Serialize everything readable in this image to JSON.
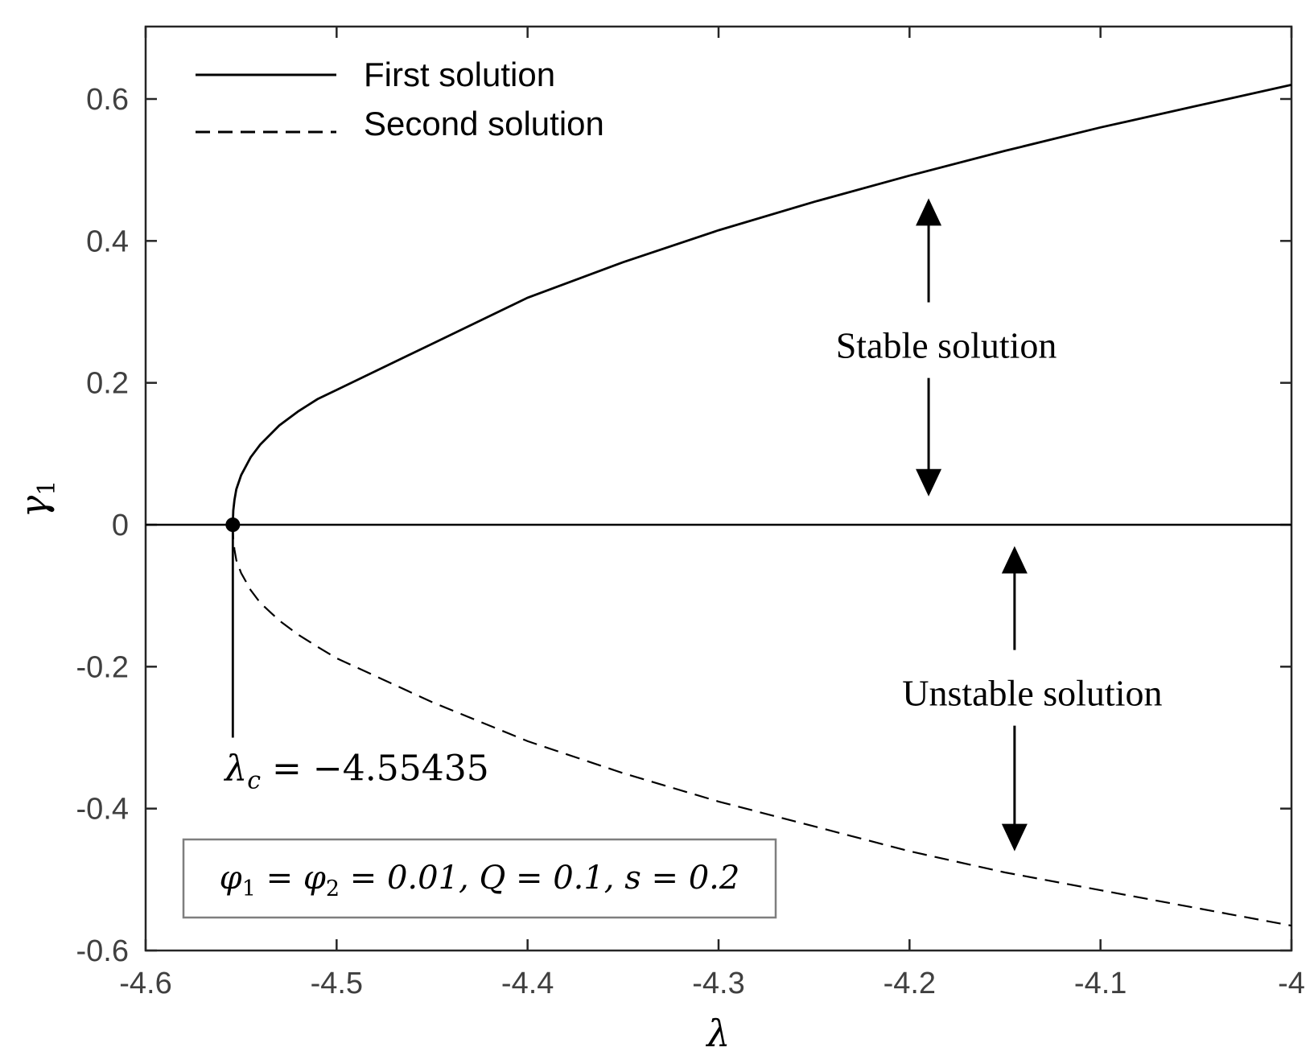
{
  "chart_data": {
    "type": "line",
    "title": "",
    "xlabel": "λ",
    "ylabel": "γ",
    "ylabel_subscript": "1",
    "xlim": [
      -4.6,
      -4.0
    ],
    "ylim": [
      -0.6,
      0.7
    ],
    "xticks": [
      -4.6,
      -4.5,
      -4.4,
      -4.3,
      -4.2,
      -4.1,
      -4.0
    ],
    "xtick_labels": [
      "-4.6",
      "-4.5",
      "-4.4",
      "-4.3",
      "-4.2",
      "-4.1",
      "-4"
    ],
    "yticks": [
      -0.6,
      -0.4,
      -0.2,
      0,
      0.2,
      0.4,
      0.6
    ],
    "ytick_labels": [
      "-0.6",
      "-0.4",
      "-0.2",
      "0",
      "0.2",
      "0.4",
      "0.6"
    ],
    "grid": false,
    "legend_position": "top-left",
    "series": [
      {
        "name": "First solution",
        "style": "solid",
        "points": [
          [
            -4.55435,
            0.0
          ],
          [
            -4.5541,
            0.02
          ],
          [
            -4.5535,
            0.035
          ],
          [
            -4.5525,
            0.05
          ],
          [
            -4.55,
            0.07
          ],
          [
            -4.545,
            0.095
          ],
          [
            -4.54,
            0.113
          ],
          [
            -4.53,
            0.14
          ],
          [
            -4.52,
            0.16
          ],
          [
            -4.51,
            0.177
          ],
          [
            -4.5,
            0.19
          ],
          [
            -4.45,
            0.255
          ],
          [
            -4.4,
            0.32
          ],
          [
            -4.35,
            0.37
          ],
          [
            -4.3,
            0.415
          ],
          [
            -4.25,
            0.455
          ],
          [
            -4.2,
            0.492
          ],
          [
            -4.15,
            0.527
          ],
          [
            -4.1,
            0.56
          ],
          [
            -4.05,
            0.59
          ],
          [
            -4.0,
            0.62
          ]
        ]
      },
      {
        "name": "Second solution",
        "style": "dashed",
        "points": [
          [
            -4.55435,
            0.0
          ],
          [
            -4.5541,
            -0.02
          ],
          [
            -4.5535,
            -0.035
          ],
          [
            -4.5525,
            -0.05
          ],
          [
            -4.55,
            -0.068
          ],
          [
            -4.545,
            -0.092
          ],
          [
            -4.54,
            -0.11
          ],
          [
            -4.53,
            -0.135
          ],
          [
            -4.52,
            -0.155
          ],
          [
            -4.51,
            -0.172
          ],
          [
            -4.5,
            -0.188
          ],
          [
            -4.45,
            -0.25
          ],
          [
            -4.4,
            -0.305
          ],
          [
            -4.35,
            -0.35
          ],
          [
            -4.3,
            -0.39
          ],
          [
            -4.25,
            -0.425
          ],
          [
            -4.2,
            -0.46
          ],
          [
            -4.15,
            -0.49
          ],
          [
            -4.1,
            -0.515
          ],
          [
            -4.05,
            -0.54
          ],
          [
            -4.0,
            -0.565
          ]
        ]
      }
    ],
    "reference_line": {
      "y": 0
    },
    "critical_point": {
      "x": -4.55435,
      "y": 0,
      "label": "λ",
      "label_subscript": "c",
      "label_value": " = −4.55435"
    },
    "annotations": {
      "stable": {
        "text": "Stable solution",
        "x": -4.19,
        "y_from": 0.04,
        "y_to": 0.46,
        "text_y": 0.25
      },
      "unstable": {
        "text": "Unstable solution",
        "x": -4.145,
        "y_from": -0.46,
        "y_to": -0.03,
        "text_y": -0.24
      }
    },
    "parameter_box": {
      "line1_a": "φ",
      "sub1": "1",
      "eq1": " = φ",
      "sub2": "2",
      "rest": " = 0.01, Q = 0.1, s = 0.2"
    }
  }
}
